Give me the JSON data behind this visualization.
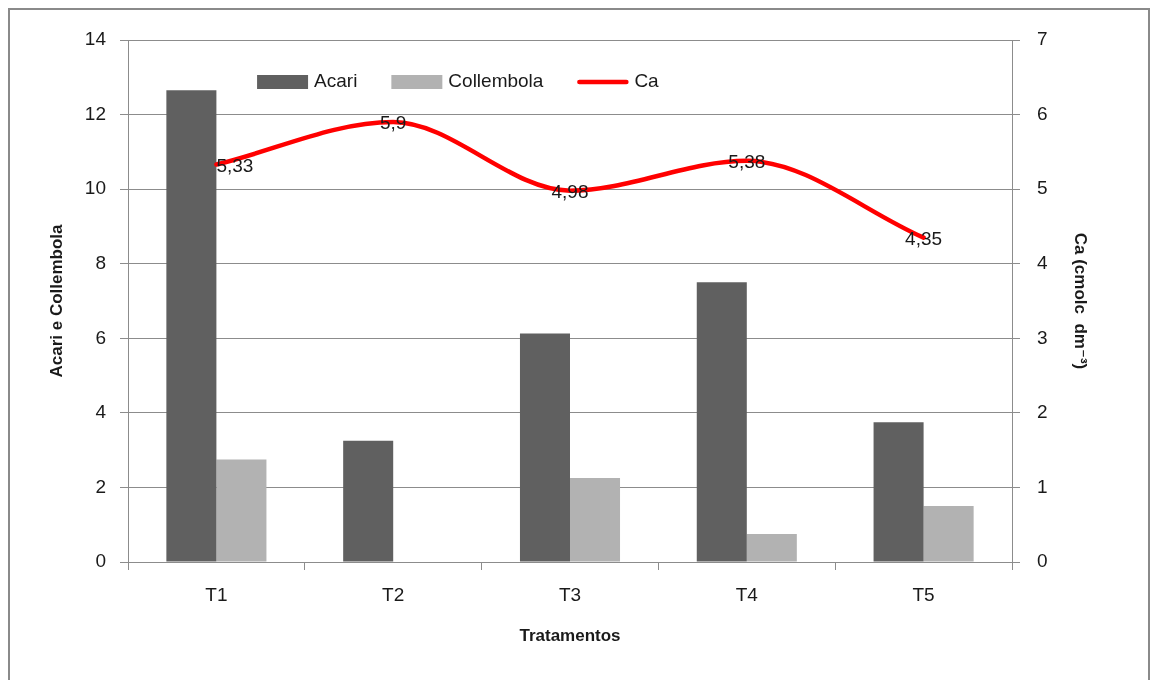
{
  "chart_data": {
    "type": "bar",
    "xlabel": "Tratamentos",
    "ylabel": "Acari e Collembola",
    "y2label": "Ca (cmolc  dm⁻³)",
    "categories": [
      "T1",
      "T2",
      "T3",
      "T4",
      "T5"
    ],
    "series": [
      {
        "name": "Acari",
        "color": "#606060",
        "values": [
          12.65,
          3.25,
          6.13,
          7.5,
          3.75
        ]
      },
      {
        "name": "Collembola",
        "color": "#b2b2b2",
        "values": [
          2.75,
          0,
          2.25,
          0.75,
          1.5
        ]
      },
      {
        "name": "Ca",
        "type": "line",
        "axis": "y2",
        "color": "#ff0000",
        "values": [
          5.33,
          5.9,
          4.98,
          5.38,
          4.35
        ],
        "value_labels": [
          "5,33",
          "5,9",
          "4,98",
          "5,38",
          "4,35"
        ]
      }
    ],
    "ylim": [
      0,
      14
    ],
    "yticks": [
      0,
      2,
      4,
      6,
      8,
      10,
      12,
      14
    ],
    "y2lim": [
      0,
      7
    ],
    "y2ticks": [
      0,
      1,
      2,
      3,
      4,
      5,
      6,
      7
    ],
    "grid": "y",
    "legend": "top",
    "marker": "none",
    "line_style": "solid"
  }
}
